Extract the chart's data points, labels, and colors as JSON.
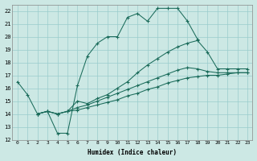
{
  "xlabel": "Humidex (Indice chaleur)",
  "background_color": "#cce8e4",
  "grid_color": "#99cccc",
  "line_color": "#1a6b5a",
  "xlim": [
    -0.5,
    23.5
  ],
  "ylim": [
    12,
    22.5
  ],
  "yticks": [
    12,
    13,
    14,
    15,
    16,
    17,
    18,
    19,
    20,
    21,
    22
  ],
  "xticks": [
    0,
    1,
    2,
    3,
    4,
    5,
    6,
    7,
    8,
    9,
    10,
    11,
    12,
    13,
    14,
    15,
    16,
    17,
    18,
    19,
    20,
    21,
    22,
    23
  ],
  "line1_x": [
    0,
    1,
    2,
    3,
    4,
    5,
    6,
    7,
    8,
    9,
    10,
    11,
    12,
    13,
    14,
    15,
    16,
    17,
    18
  ],
  "line1_y": [
    16.5,
    15.5,
    14.0,
    14.2,
    12.5,
    12.5,
    16.2,
    18.5,
    19.5,
    20.0,
    20.0,
    21.5,
    21.8,
    21.2,
    22.2,
    22.2,
    22.2,
    21.2,
    19.8
  ],
  "line2_x": [
    2,
    3,
    4,
    5,
    6,
    7,
    8,
    9,
    10,
    11,
    12,
    13,
    14,
    15,
    16,
    17,
    18,
    19,
    20,
    21,
    22,
    23
  ],
  "line2_y": [
    14.0,
    14.2,
    14.0,
    14.2,
    15.0,
    14.8,
    15.2,
    15.5,
    16.0,
    16.5,
    17.2,
    17.8,
    18.3,
    18.8,
    19.2,
    19.5,
    19.7,
    18.8,
    17.5,
    17.5,
    17.5,
    17.5
  ],
  "line3_x": [
    2,
    3,
    4,
    5,
    6,
    7,
    8,
    9,
    10,
    11,
    12,
    13,
    14,
    15,
    16,
    17,
    18,
    19,
    20,
    21,
    22,
    23
  ],
  "line3_y": [
    14.0,
    14.2,
    14.0,
    14.2,
    14.5,
    14.7,
    15.0,
    15.3,
    15.6,
    15.9,
    16.2,
    16.5,
    16.8,
    17.1,
    17.4,
    17.6,
    17.5,
    17.3,
    17.2,
    17.2,
    17.2,
    17.2
  ],
  "line4_x": [
    2,
    3,
    4,
    5,
    6,
    7,
    8,
    9,
    10,
    11,
    12,
    13,
    14,
    15,
    16,
    17,
    18,
    19,
    20,
    21,
    22,
    23
  ],
  "line4_y": [
    14.0,
    14.2,
    14.0,
    14.2,
    14.3,
    14.5,
    14.7,
    14.9,
    15.1,
    15.4,
    15.6,
    15.9,
    16.1,
    16.4,
    16.6,
    16.8,
    16.9,
    17.0,
    17.0,
    17.1,
    17.2,
    17.2
  ]
}
